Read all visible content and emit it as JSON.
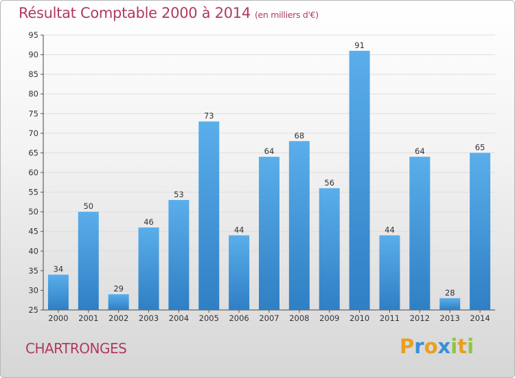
{
  "title": "Résultat Comptable 2000 à 2014",
  "unit_label": "(en milliers d'€)",
  "commune": "CHARTRONGES",
  "logo": {
    "text": "Proxiti",
    "letters": [
      {
        "ch": "P",
        "color": "#e8a020"
      },
      {
        "ch": "r",
        "color": "#3a8fd6"
      },
      {
        "ch": "o",
        "color": "#e8a020"
      },
      {
        "ch": "x",
        "color": "#3a8fd6"
      },
      {
        "ch": "i",
        "color": "#8cc63f"
      },
      {
        "ch": "t",
        "color": "#e8a020"
      },
      {
        "ch": "i",
        "color": "#8cc63f"
      }
    ]
  },
  "colors": {
    "title": "#b03a5b",
    "bar_light": "#5aaeea",
    "bar_dark": "#2f7fc4",
    "grid": "#dedede",
    "axis_text": "#333333"
  },
  "chart_data": {
    "type": "bar",
    "title": "Résultat Comptable 2000 à 2014",
    "subtitle": "(en milliers d'€)",
    "xlabel": "",
    "ylabel": "",
    "categories": [
      "2000",
      "2001",
      "2002",
      "2003",
      "2004",
      "2005",
      "2006",
      "2007",
      "2008",
      "2009",
      "2010",
      "2011",
      "2012",
      "2013",
      "2014"
    ],
    "values": [
      34,
      50,
      29,
      46,
      53,
      73,
      44,
      64,
      68,
      56,
      91,
      44,
      64,
      28,
      65
    ],
    "ylim": [
      25,
      95
    ],
    "yticks": [
      25,
      30,
      35,
      40,
      45,
      50,
      55,
      60,
      65,
      70,
      75,
      80,
      85,
      90,
      95
    ],
    "grid": true,
    "legend": "none"
  }
}
